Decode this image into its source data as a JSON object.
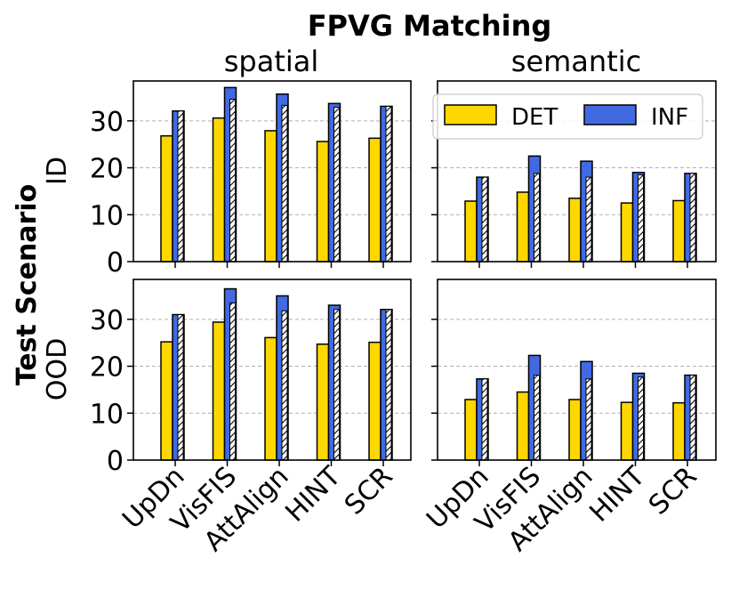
{
  "chart_data": {
    "type": "bar",
    "title": "FPVG Matching",
    "row_label": "Test Scenario",
    "column_titles": [
      "spatial",
      "semantic"
    ],
    "row_titles": [
      "ID",
      "OOD"
    ],
    "categories": [
      "UpDn",
      "VisFIS",
      "AttAlign",
      "HINT",
      "SCR"
    ],
    "ylim": [
      0,
      38.5
    ],
    "yticks": [
      "0",
      "10",
      "20",
      "30"
    ],
    "grid": true,
    "legend": {
      "position": "top-right",
      "entries": [
        "DET",
        "INF"
      ]
    },
    "colors": {
      "DET": "#ffd700",
      "INF": "#4169e1",
      "grid": "#b0b0b0"
    },
    "panels": [
      {
        "row": "ID",
        "column": "spatial",
        "series": [
          {
            "name": "DET",
            "values": [
              26.8,
              30.6,
              27.9,
              25.6,
              26.3
            ]
          },
          {
            "name": "INF",
            "values": [
              32.1,
              37.1,
              35.7,
              33.7,
              33.1
            ]
          },
          {
            "name": "INF (hatched)",
            "values": [
              32.1,
              34.6,
              33.3,
              32.9,
              33.1
            ]
          }
        ]
      },
      {
        "row": "ID",
        "column": "semantic",
        "series": [
          {
            "name": "DET",
            "values": [
              12.9,
              14.8,
              13.5,
              12.5,
              13.0
            ]
          },
          {
            "name": "INF",
            "values": [
              18.0,
              22.5,
              21.4,
              19.0,
              18.8
            ]
          },
          {
            "name": "INF (hatched)",
            "values": [
              18.0,
              18.8,
              18.0,
              18.5,
              18.8
            ]
          }
        ]
      },
      {
        "row": "OOD",
        "column": "spatial",
        "series": [
          {
            "name": "DET",
            "values": [
              25.2,
              29.4,
              26.1,
              24.7,
              25.1
            ]
          },
          {
            "name": "INF",
            "values": [
              31.0,
              36.5,
              35.0,
              33.0,
              32.1
            ]
          },
          {
            "name": "INF (hatched)",
            "values": [
              31.0,
              33.5,
              31.8,
              32.1,
              32.1
            ]
          }
        ]
      },
      {
        "row": "OOD",
        "column": "semantic",
        "series": [
          {
            "name": "DET",
            "values": [
              12.9,
              14.5,
              12.9,
              12.3,
              12.2
            ]
          },
          {
            "name": "INF",
            "values": [
              17.3,
              22.3,
              21.0,
              18.5,
              18.1
            ]
          },
          {
            "name": "INF (hatched)",
            "values": [
              17.3,
              18.1,
              17.3,
              17.7,
              18.1
            ]
          }
        ]
      }
    ]
  }
}
